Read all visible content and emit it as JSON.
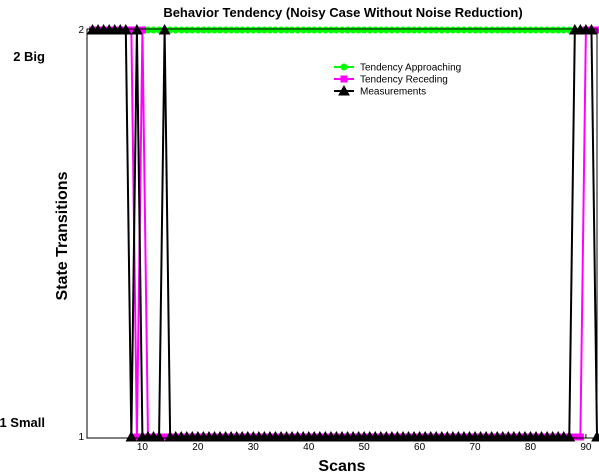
{
  "chart_data": {
    "type": "line",
    "title": "Behavior Tendency (Noisy Case Without Noise Reduction)",
    "xlabel": "Scans",
    "ylabel": "State Transitions",
    "xlim": [
      0,
      92
    ],
    "ylim": [
      1,
      2
    ],
    "x_ticks": [
      10,
      20,
      30,
      40,
      50,
      60,
      70,
      80,
      90
    ],
    "y_ticks": [
      1,
      2
    ],
    "y_category_labels": [
      {
        "value": 2,
        "label": "2 Big"
      },
      {
        "value": 1,
        "label": "1 Small"
      }
    ],
    "legend_position": "upper-right",
    "series": [
      {
        "name": "Tendency Approaching",
        "color": "#00ff00",
        "marker": "circle",
        "x": [
          1,
          92
        ],
        "y": [
          2,
          2
        ]
      },
      {
        "name": "Tendency Receding",
        "color": "#ff00ff",
        "marker": "square",
        "x": [
          1,
          2,
          3,
          4,
          5,
          6,
          7,
          8,
          9,
          10,
          11,
          12,
          13,
          14,
          15,
          16,
          17,
          18,
          19,
          20,
          21,
          22,
          23,
          24,
          25,
          26,
          27,
          28,
          29,
          30,
          31,
          32,
          33,
          34,
          35,
          36,
          37,
          38,
          39,
          40,
          41,
          42,
          43,
          44,
          45,
          46,
          47,
          48,
          49,
          50,
          51,
          52,
          53,
          54,
          55,
          56,
          57,
          58,
          59,
          60,
          61,
          62,
          63,
          64,
          65,
          66,
          67,
          68,
          69,
          70,
          71,
          72,
          73,
          74,
          75,
          76,
          77,
          78,
          79,
          80,
          81,
          82,
          83,
          84,
          85,
          86,
          87,
          88,
          89,
          90,
          91,
          92
        ],
        "y": [
          2,
          2,
          2,
          2,
          2,
          2,
          2,
          2,
          1,
          2,
          1,
          1,
          1,
          1,
          1,
          1,
          1,
          1,
          1,
          1,
          1,
          1,
          1,
          1,
          1,
          1,
          1,
          1,
          1,
          1,
          1,
          1,
          1,
          1,
          1,
          1,
          1,
          1,
          1,
          1,
          1,
          1,
          1,
          1,
          1,
          1,
          1,
          1,
          1,
          1,
          1,
          1,
          1,
          1,
          1,
          1,
          1,
          1,
          1,
          1,
          1,
          1,
          1,
          1,
          1,
          1,
          1,
          1,
          1,
          1,
          1,
          1,
          1,
          1,
          1,
          1,
          1,
          1,
          1,
          1,
          1,
          1,
          1,
          1,
          1,
          1,
          1,
          1,
          1,
          2,
          2,
          2
        ]
      },
      {
        "name": "Measurements",
        "color": "#000000",
        "marker": "triangle",
        "x": [
          1,
          2,
          3,
          4,
          5,
          6,
          7,
          8,
          9,
          10,
          11,
          12,
          13,
          14,
          15,
          16,
          17,
          18,
          19,
          20,
          21,
          22,
          23,
          24,
          25,
          26,
          27,
          28,
          29,
          30,
          31,
          32,
          33,
          34,
          35,
          36,
          37,
          38,
          39,
          40,
          41,
          42,
          43,
          44,
          45,
          46,
          47,
          48,
          49,
          50,
          51,
          52,
          53,
          54,
          55,
          56,
          57,
          58,
          59,
          60,
          61,
          62,
          63,
          64,
          65,
          66,
          67,
          68,
          69,
          70,
          71,
          72,
          73,
          74,
          75,
          76,
          77,
          78,
          79,
          80,
          81,
          82,
          83,
          84,
          85,
          86,
          87,
          88,
          89,
          90,
          91,
          92
        ],
        "y": [
          2,
          2,
          2,
          2,
          2,
          2,
          2,
          1,
          2,
          1,
          1,
          1,
          1,
          2,
          1,
          1,
          1,
          1,
          1,
          1,
          1,
          1,
          1,
          1,
          1,
          1,
          1,
          1,
          1,
          1,
          1,
          1,
          1,
          1,
          1,
          1,
          1,
          1,
          1,
          1,
          1,
          1,
          1,
          1,
          1,
          1,
          1,
          1,
          1,
          1,
          1,
          1,
          1,
          1,
          1,
          1,
          1,
          1,
          1,
          1,
          1,
          1,
          1,
          1,
          1,
          1,
          1,
          1,
          1,
          1,
          1,
          1,
          1,
          1,
          1,
          1,
          1,
          1,
          1,
          1,
          1,
          1,
          1,
          1,
          1,
          1,
          1,
          2,
          2,
          2,
          2,
          1
        ]
      }
    ]
  }
}
